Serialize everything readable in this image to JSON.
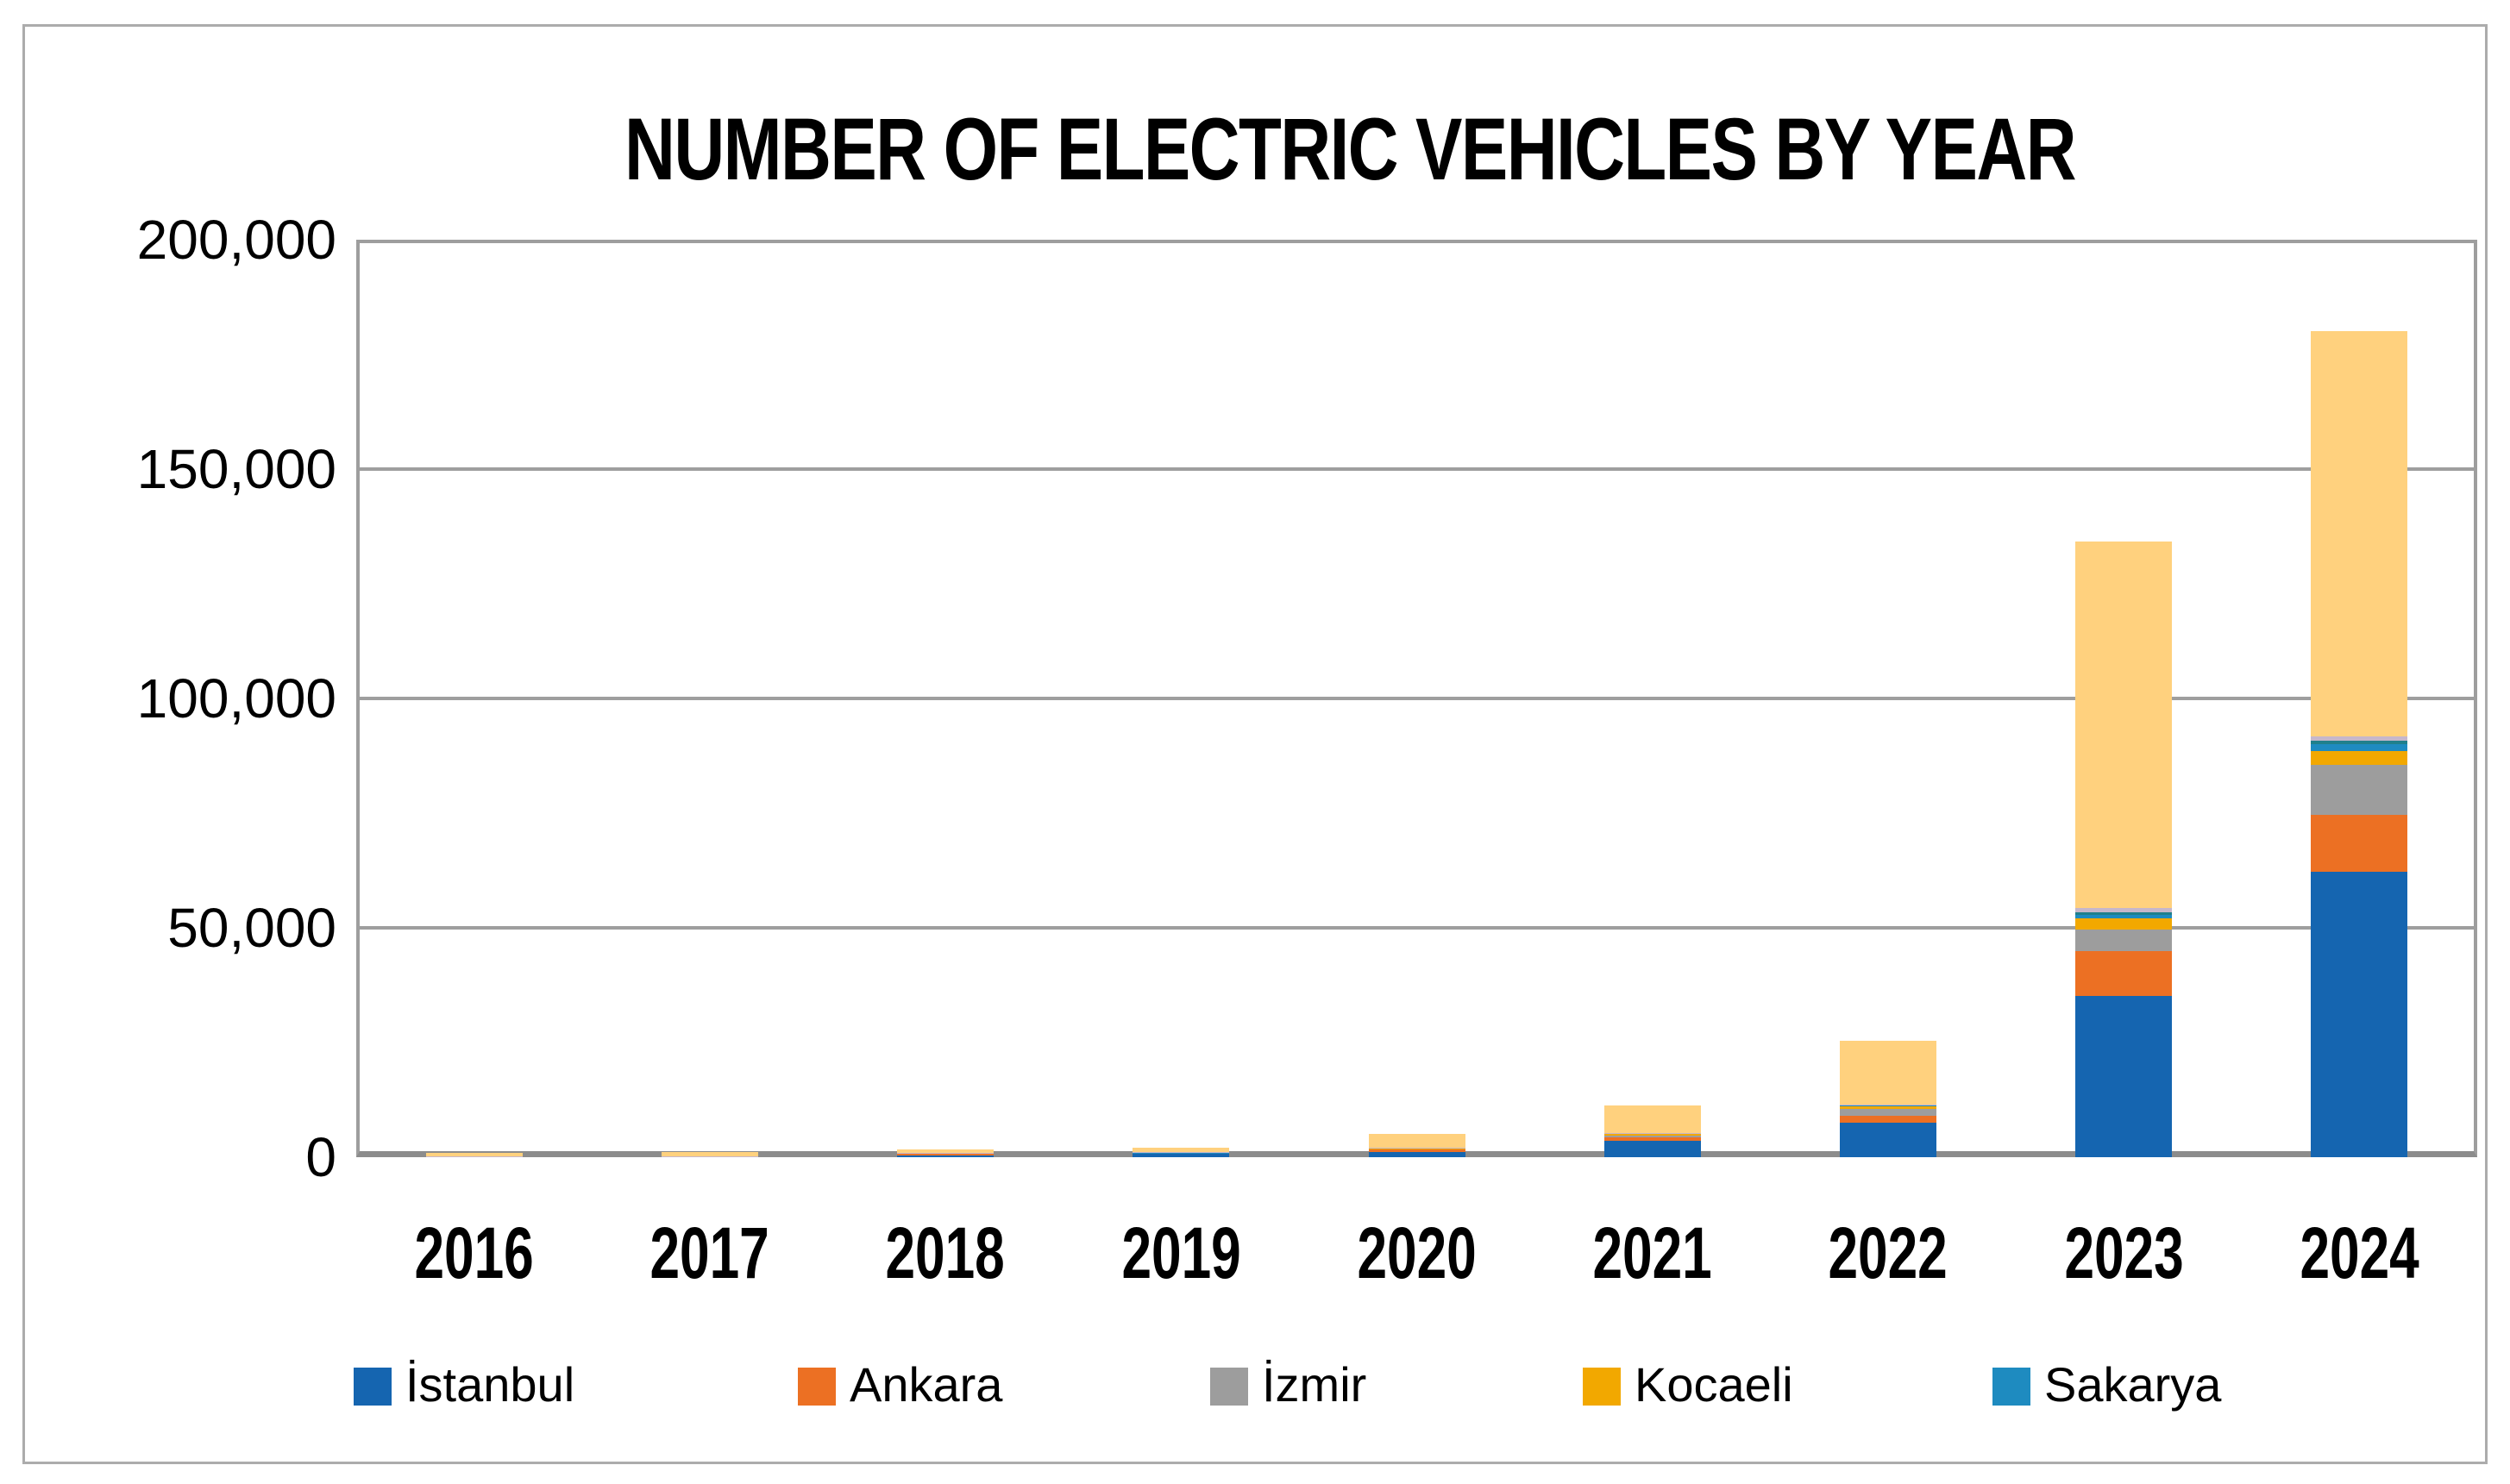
{
  "chart_data": {
    "type": "bar",
    "stacked": true,
    "title": "NUMBER OF ELECTRIC VEHICLES BY YEAR",
    "xlabel": "",
    "ylabel": "",
    "ylim": [
      0,
      200000
    ],
    "grid": true,
    "legend_position": "bottom",
    "categories": [
      "2016",
      "2017",
      "2018",
      "2019",
      "2020",
      "2021",
      "2022",
      "2023",
      "2024"
    ],
    "yticks": [
      {
        "value": 0,
        "label": "0"
      },
      {
        "value": 50000,
        "label": "50,000"
      },
      {
        "value": 100000,
        "label": "100,000"
      },
      {
        "value": 150000,
        "label": "150,000"
      },
      {
        "value": 200000,
        "label": "200,000"
      }
    ],
    "series": [
      {
        "key": "istanbul",
        "name": "İstanbul",
        "color": "#1565B0",
        "in_legend": true,
        "values": [
          100,
          120,
          300,
          750,
          1150,
          3600,
          7500,
          35200,
          62200
        ]
      },
      {
        "key": "ankara",
        "name": "Ankara",
        "color": "#EC7023",
        "in_legend": true,
        "values": [
          40,
          50,
          550,
          100,
          700,
          750,
          1500,
          9800,
          12400
        ]
      },
      {
        "key": "izmir",
        "name": "İzmir",
        "color": "#9D9D9D",
        "in_legend": true,
        "values": [
          20,
          25,
          40,
          100,
          80,
          400,
          1500,
          4700,
          10900
        ]
      },
      {
        "key": "kocaeli",
        "name": "Kocaeli",
        "color": "#F2A800",
        "in_legend": true,
        "values": [
          10,
          15,
          20,
          50,
          40,
          370,
          560,
          2400,
          3000
        ]
      },
      {
        "key": "sakarya",
        "name": "Sakarya",
        "color": "#1E8BC0",
        "in_legend": true,
        "values": [
          5,
          5,
          10,
          25,
          20,
          100,
          200,
          750,
          1500
        ]
      },
      {
        "key": "unlabeled-teal",
        "name": "",
        "color": "#20808C",
        "in_legend": false,
        "values": [
          5,
          5,
          10,
          25,
          20,
          80,
          150,
          560,
          750
        ]
      },
      {
        "key": "unlabeled-lavender",
        "name": "",
        "color": "#C6B7CB",
        "in_legend": false,
        "values": [
          5,
          5,
          10,
          25,
          20,
          50,
          90,
          940,
          940
        ]
      },
      {
        "key": "unlabeled-peach",
        "name": "",
        "color": "#FFD17E",
        "in_legend": false,
        "values": [
          715,
          875,
          760,
          1025,
          2970,
          5950,
          13900,
          79800,
          88400
        ]
      }
    ]
  }
}
